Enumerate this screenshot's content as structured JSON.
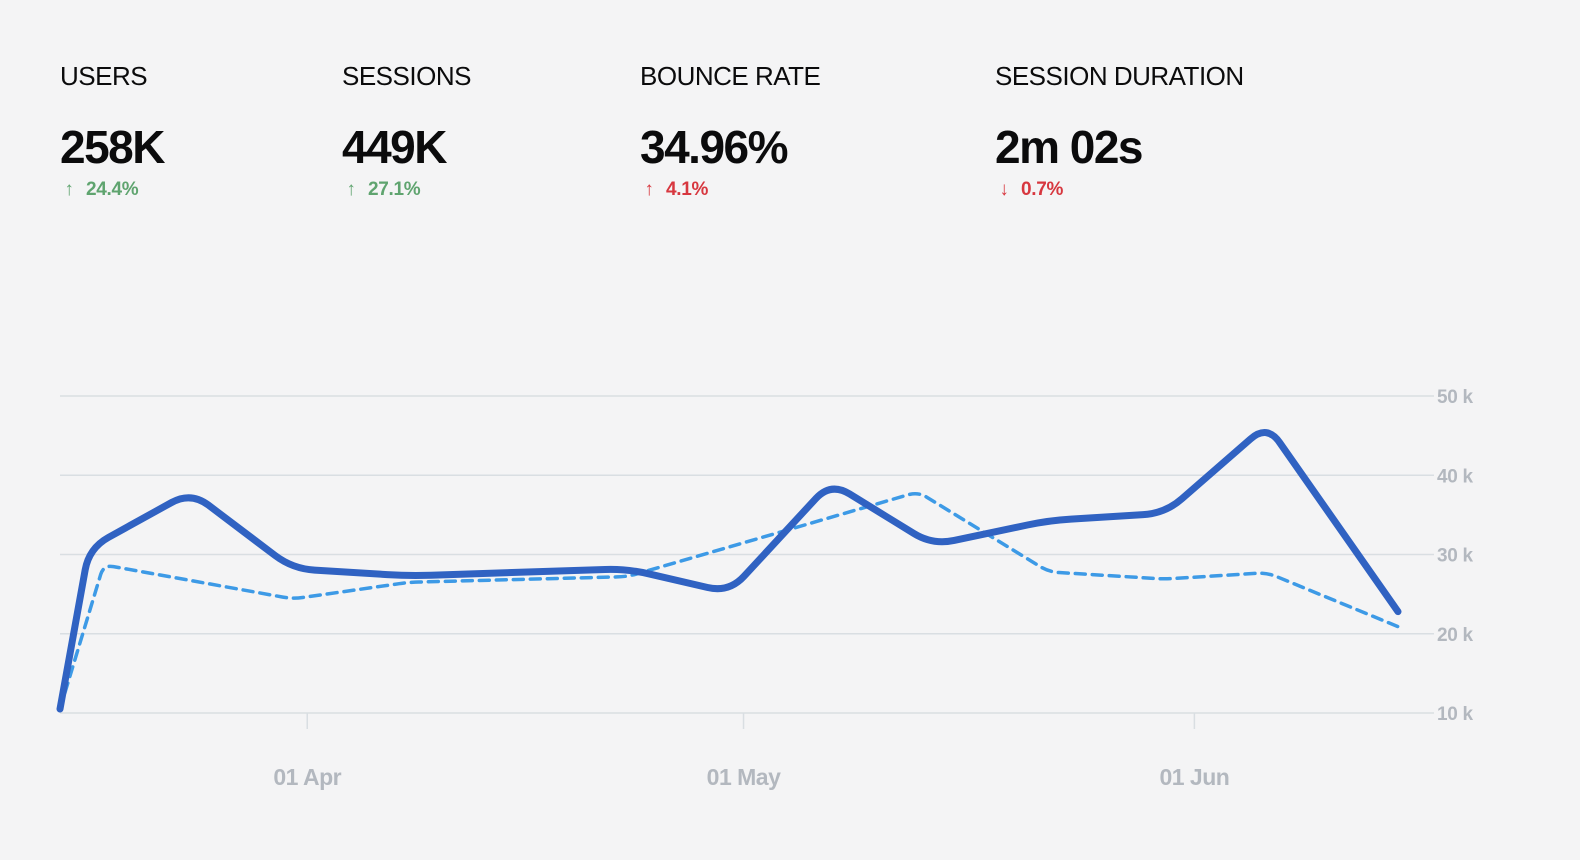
{
  "kpis": [
    {
      "label": "USERS",
      "value": "258K",
      "delta": "24.4%",
      "direction": "up",
      "color": "#5fa46f"
    },
    {
      "label": "SESSIONS",
      "value": "449K",
      "delta": "27.1%",
      "direction": "up",
      "color": "#5fa46f"
    },
    {
      "label": "BOUNCE RATE",
      "value": "34.96%",
      "delta": "4.1%",
      "direction": "up",
      "color": "#d7373f"
    },
    {
      "label": "SESSION DURATION",
      "value": "2m 02s",
      "delta": "0.7%",
      "direction": "down",
      "color": "#d7373f"
    }
  ],
  "icons": {
    "up": "arrow-up-icon",
    "down": "arrow-down-icon"
  },
  "colors": {
    "series_solid": "#3062c2",
    "series_dashed": "#3d9ae6",
    "grid": "#d9dee2",
    "tick_text": "#b3b8bf",
    "positive": "#5fa46f",
    "negative": "#d7373f"
  },
  "chart_data": {
    "type": "line",
    "x_type": "date",
    "xlim": [
      "2023-03-15",
      "2023-06-15"
    ],
    "ylim": [
      10,
      50
    ],
    "y_ticks": [
      10,
      20,
      30,
      40,
      50
    ],
    "y_tick_labels": [
      "10 k",
      "20 k",
      "30 k",
      "40 k",
      "50 k"
    ],
    "y_axis_position": "right",
    "x_ticks": [
      "2023-04-01",
      "2023-05-01",
      "2023-06-01"
    ],
    "x_tick_labels": [
      "01 Apr",
      "01 May",
      "01 Jun"
    ],
    "grid": true,
    "legend": false,
    "series": [
      {
        "style": "solid",
        "color": "#3062c2",
        "x": [
          "2023-03-15",
          "2023-03-17",
          "2023-03-24",
          "2023-03-31",
          "2023-04-08",
          "2023-04-23",
          "2023-04-30",
          "2023-05-07",
          "2023-05-14",
          "2023-05-22",
          "2023-05-30",
          "2023-06-06",
          "2023-06-15"
        ],
        "y": [
          10.5,
          30.8,
          37.9,
          28.2,
          27.3,
          28.2,
          25.2,
          39.1,
          31.2,
          34.3,
          35.2,
          46.4,
          22.8
        ]
      },
      {
        "style": "dashed",
        "color": "#3d9ae6",
        "x": [
          "2023-03-15",
          "2023-03-18",
          "2023-03-31",
          "2023-04-08",
          "2023-04-23",
          "2023-05-13",
          "2023-05-22",
          "2023-05-30",
          "2023-06-06",
          "2023-06-15"
        ],
        "y": [
          10.5,
          28.7,
          24.4,
          26.5,
          27.2,
          37.9,
          27.8,
          26.9,
          27.7,
          20.9
        ]
      }
    ]
  }
}
